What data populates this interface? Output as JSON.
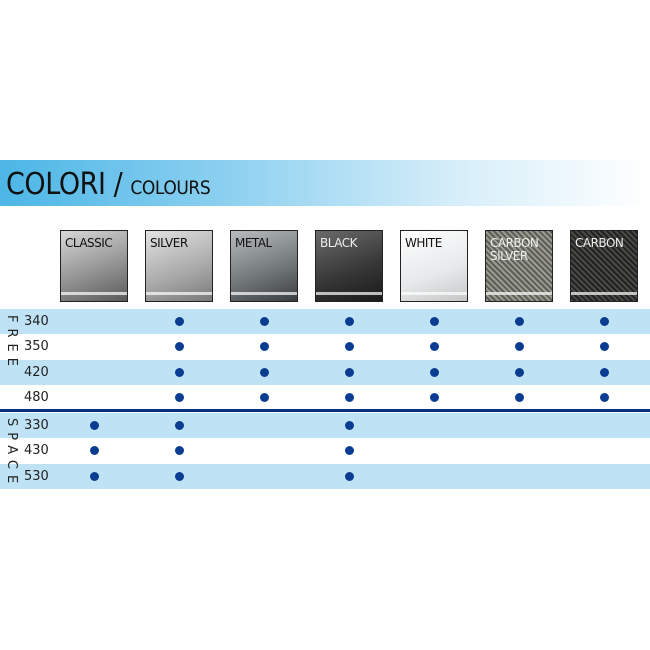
{
  "header": {
    "title": "COLORI /",
    "subtitle": "COLOURS"
  },
  "colors": [
    {
      "label": "CLASSIC",
      "bg": "linear-gradient(160deg,#d8d8d8,#8e8e8e 60%,#5a5a5a)"
    },
    {
      "label": "SILVER",
      "bg": "linear-gradient(160deg,#e2e2e2,#a8a8a8 60%,#7a7a7a)"
    },
    {
      "label": "METAL",
      "bg": "linear-gradient(160deg,#b8bcbf,#6f7477 60%,#3b3e40)"
    },
    {
      "label": "BLACK",
      "bg": "linear-gradient(160deg,#6a6a6a,#353535 60%,#1a1a1a)"
    },
    {
      "label": "WHITE",
      "bg": "linear-gradient(160deg,#ffffff,#e6e8ea 60%,#c4c6c8)"
    },
    {
      "label": "CARBON SILVER",
      "bg": "repeating-linear-gradient(45deg,#9a9a90 0 2px,#5e5e58 2px 4px)"
    },
    {
      "label": "CARBON",
      "bg": "repeating-linear-gradient(45deg,#4a4a46 0 2px,#222 2px 4px)"
    }
  ],
  "groups": [
    {
      "name": "FREE",
      "models": [
        {
          "model": "340",
          "available": [
            false,
            true,
            true,
            true,
            true,
            true,
            true
          ]
        },
        {
          "model": "350",
          "available": [
            false,
            true,
            true,
            true,
            true,
            true,
            true
          ]
        },
        {
          "model": "420",
          "available": [
            false,
            true,
            true,
            true,
            true,
            true,
            true
          ]
        },
        {
          "model": "480",
          "available": [
            false,
            true,
            true,
            true,
            true,
            true,
            true
          ]
        }
      ]
    },
    {
      "name": "SPACE",
      "models": [
        {
          "model": "330",
          "available": [
            true,
            true,
            false,
            true,
            false,
            false,
            false
          ]
        },
        {
          "model": "430",
          "available": [
            true,
            true,
            false,
            true,
            false,
            false,
            false
          ]
        },
        {
          "model": "530",
          "available": [
            true,
            true,
            false,
            true,
            false,
            false,
            false
          ]
        }
      ]
    }
  ],
  "dot_color": "#0a3d91"
}
